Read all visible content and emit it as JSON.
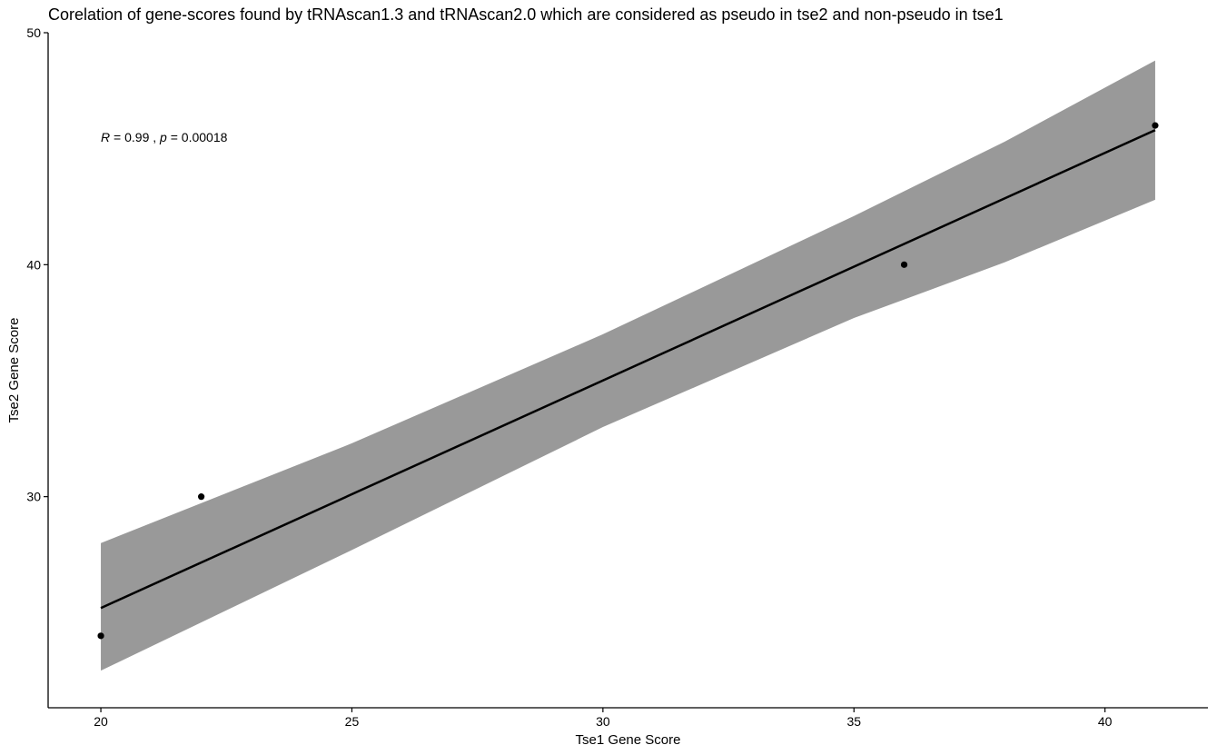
{
  "chart_data": {
    "type": "scatter",
    "title": "Corelation of gene-scores found by tRNAscan1.3 and tRNAscan2.0 which are considered as pseudo in tse2 and non-pseudo in tse1",
    "xlabel": "Tse1 Gene Score",
    "ylabel": "Tse2 Gene Score",
    "xlim": [
      18.95,
      42.05
    ],
    "ylim": [
      20.9,
      50
    ],
    "x_ticks": [
      20,
      25,
      30,
      35,
      40
    ],
    "y_ticks": [
      30,
      40,
      50
    ],
    "points": [
      {
        "x": 20,
        "y": 24
      },
      {
        "x": 22,
        "y": 30
      },
      {
        "x": 36,
        "y": 40
      },
      {
        "x": 41,
        "y": 46
      }
    ],
    "fit": {
      "x_range": [
        20,
        41
      ],
      "y_at": [
        25.2,
        45.8
      ]
    },
    "confidence_band": {
      "x": [
        20,
        25,
        30,
        35,
        38,
        41
      ],
      "lower": [
        22.5,
        27.7,
        33.0,
        37.7,
        40.1,
        42.8
      ],
      "upper": [
        28.0,
        32.3,
        37.0,
        42.1,
        45.3,
        48.8
      ]
    },
    "annotation": {
      "r_label": "R",
      "r_value": " = 0.99 , ",
      "p_label": "p",
      "p_value": " = 0.00018",
      "x": 20,
      "y": 45.5
    },
    "grid": false,
    "colors": {
      "band": "#999999",
      "line": "#000000",
      "points": "#000000"
    }
  }
}
